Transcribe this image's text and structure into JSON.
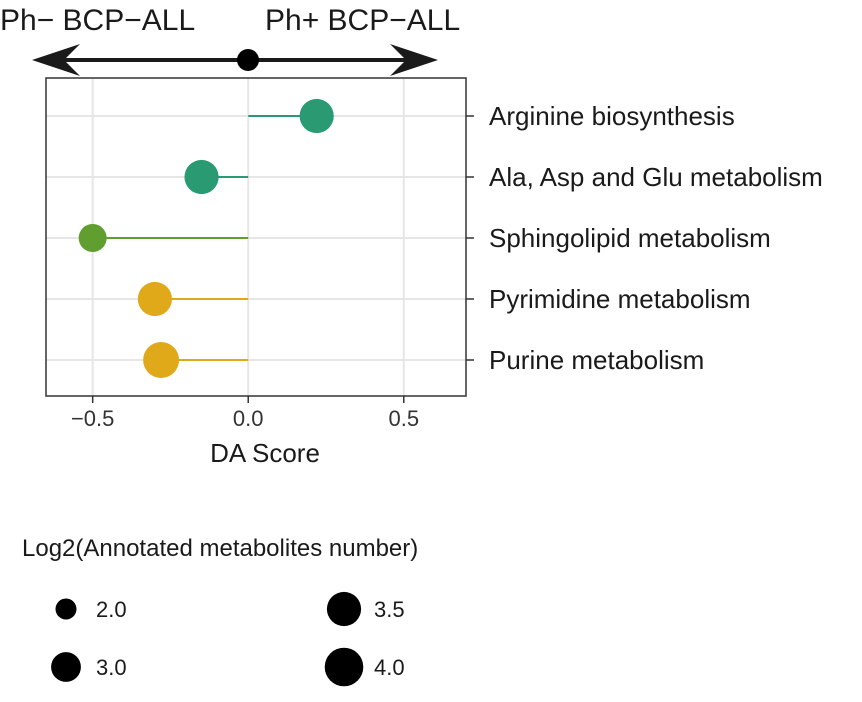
{
  "header": {
    "left_label": "Ph− BCP−ALL",
    "right_label": "Ph+ BCP−ALL"
  },
  "chart_data": {
    "type": "lollipop",
    "xlabel": "DA Score",
    "xlim": [
      -0.65,
      0.7
    ],
    "xticks": [
      -0.5,
      0.0,
      0.5
    ],
    "xtick_labels": [
      "−0.5",
      "0.0",
      "0.5"
    ],
    "grid": true,
    "legend_position": "bottom",
    "categories": [
      "Arginine biosynthesis",
      "Ala, Asp and Glu metabolism",
      "Sphingolipid metabolism",
      "Pyrimidine metabolism",
      "Purine metabolism"
    ],
    "values": [
      0.22,
      -0.15,
      -0.5,
      -0.3,
      -0.28
    ],
    "sizes": [
      3.5,
      3.5,
      2.8,
      3.5,
      3.7
    ],
    "colors": [
      "#2a9a72",
      "#2a9a72",
      "#5f9e2f",
      "#e0a91a",
      "#e0a91a"
    ],
    "legend": {
      "title": "Log2(Annotated metabolites number)",
      "items": [
        {
          "label": "2.0",
          "value": 2.0
        },
        {
          "label": "3.5",
          "value": 3.5
        },
        {
          "label": "3.0",
          "value": 3.0
        },
        {
          "label": "4.0",
          "value": 4.0
        }
      ]
    }
  }
}
